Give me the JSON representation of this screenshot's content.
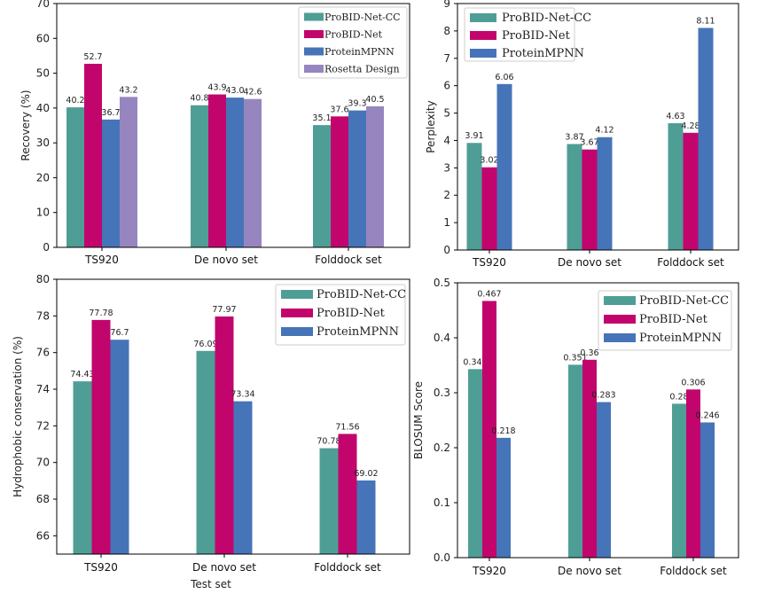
{
  "chart_data": [
    {
      "type": "bar",
      "categories": [
        "TS920",
        "De novo set",
        "Folddock set"
      ],
      "ylabel": "Recovery (%)",
      "xlabel": "",
      "ylim": [
        0,
        70
      ],
      "yticks": [
        0,
        10,
        20,
        30,
        40,
        50,
        60,
        70
      ],
      "legend_position": "top-right",
      "series": [
        {
          "name": "ProBID-Net-CC",
          "color": "#4f9e96",
          "values": [
            40.2,
            40.8,
            35.1
          ],
          "labels": [
            "40.2",
            "40.8",
            "35.1"
          ]
        },
        {
          "name": "ProBID-Net",
          "color": "#c2056d",
          "values": [
            52.7,
            43.9,
            37.6
          ],
          "labels": [
            "52.7",
            "43.9",
            "37.6"
          ]
        },
        {
          "name": "ProteinMPNN",
          "color": "#4674b8",
          "values": [
            36.7,
            43.0,
            39.3
          ],
          "labels": [
            "36.7",
            "43.0",
            "39.3"
          ]
        },
        {
          "name": "Rosetta Design",
          "color": "#9785c0",
          "values": [
            43.2,
            42.6,
            40.5
          ],
          "labels": [
            "43.2",
            "42.6",
            "40.5"
          ]
        }
      ]
    },
    {
      "type": "bar",
      "categories": [
        "TS920",
        "De novo set",
        "Folddock set"
      ],
      "ylabel": "Perplexity",
      "xlabel": "",
      "ylim": [
        0,
        9
      ],
      "yticks": [
        0,
        1,
        2,
        3,
        4,
        5,
        6,
        7,
        8,
        9
      ],
      "legend_position": "top-left",
      "series": [
        {
          "name": "ProBID-Net-CC",
          "color": "#4f9e96",
          "values": [
            3.91,
            3.87,
            4.63
          ],
          "labels": [
            "3.91",
            "3.87",
            "4.63"
          ]
        },
        {
          "name": "ProBID-Net",
          "color": "#c2056d",
          "values": [
            3.02,
            3.67,
            4.28
          ],
          "labels": [
            "3.02",
            "3.67",
            "4.28"
          ]
        },
        {
          "name": "ProteinMPNN",
          "color": "#4674b8",
          "values": [
            6.06,
            4.12,
            8.11
          ],
          "labels": [
            "6.06",
            "4.12",
            "8.11"
          ]
        }
      ]
    },
    {
      "type": "bar",
      "categories": [
        "TS920",
        "De novo set",
        "Folddock set"
      ],
      "ylabel": "Hydrophobic conservation (%)",
      "xlabel": "Test set",
      "ylim": [
        65,
        80
      ],
      "yticks": [
        66,
        68,
        70,
        72,
        74,
        76,
        78,
        80
      ],
      "legend_position": "top-right",
      "series": [
        {
          "name": "ProBID-Net-CC",
          "color": "#4f9e96",
          "values": [
            74.43,
            76.09,
            70.78
          ],
          "labels": [
            "74.43",
            "76.09",
            "70.78"
          ]
        },
        {
          "name": "ProBID-Net",
          "color": "#c2056d",
          "values": [
            77.78,
            77.97,
            71.56
          ],
          "labels": [
            "77.78",
            "77.97",
            "71.56"
          ]
        },
        {
          "name": "ProteinMPNN",
          "color": "#4674b8",
          "values": [
            76.7,
            73.34,
            69.02
          ],
          "labels": [
            "76.7",
            "73.34",
            "69.02"
          ]
        }
      ]
    },
    {
      "type": "bar",
      "categories": [
        "TS920",
        "De novo set",
        "Folddock set"
      ],
      "ylabel": "BLOSUM Score",
      "xlabel": "",
      "ylim": [
        0,
        0.5
      ],
      "yticks": [
        0,
        0.1,
        0.2,
        0.3,
        0.4,
        0.5
      ],
      "ytick_labels": [
        "0.0",
        "0.1",
        "0.2",
        "0.3",
        "0.4",
        "0.5"
      ],
      "legend_position": "top-right",
      "series": [
        {
          "name": "ProBID-Net-CC",
          "color": "#4f9e96",
          "values": [
            0.343,
            0.351,
            0.28
          ],
          "labels": [
            "0.343",
            "0.351",
            "0.28"
          ]
        },
        {
          "name": "ProBID-Net",
          "color": "#c2056d",
          "values": [
            0.467,
            0.36,
            0.306
          ],
          "labels": [
            "0.467",
            "0.36",
            "0.306"
          ]
        },
        {
          "name": "ProteinMPNN",
          "color": "#4674b8",
          "values": [
            0.218,
            0.283,
            0.246
          ],
          "labels": [
            "0.218",
            "0.283",
            "0.246"
          ]
        }
      ]
    }
  ]
}
